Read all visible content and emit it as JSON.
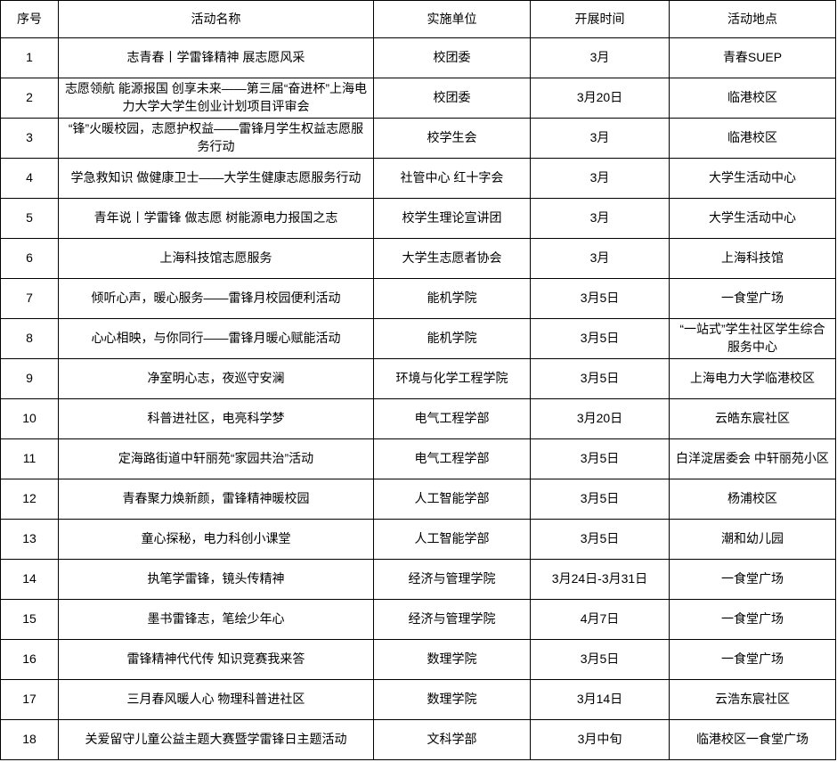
{
  "table": {
    "headers": {
      "index": "序号",
      "name": "活动名称",
      "unit": "实施单位",
      "time": "开展时间",
      "location": "活动地点"
    },
    "rows": [
      {
        "index": "1",
        "name": "志青春丨学雷锋精神 展志愿风采",
        "unit": "校团委",
        "time": "3月",
        "location": "青春SUEP"
      },
      {
        "index": "2",
        "name": "志愿领航 能源报国 创享未来——第三届“奋进杯”上海电力大学大学生创业计划项目评审会",
        "unit": "校团委",
        "time": "3月20日",
        "location": "临港校区"
      },
      {
        "index": "3",
        "name": "“锋”火暖校园，志愿护权益——雷锋月学生权益志愿服务行动",
        "unit": "校学生会",
        "time": "3月",
        "location": "临港校区"
      },
      {
        "index": "4",
        "name": "学急救知识 做健康卫士——大学生健康志愿服务行动",
        "unit": "社管中心 红十字会",
        "time": "3月",
        "location": "大学生活动中心"
      },
      {
        "index": "5",
        "name": "青年说丨学雷锋 做志愿 树能源电力报国之志",
        "unit": "校学生理论宣讲团",
        "time": "3月",
        "location": "大学生活动中心"
      },
      {
        "index": "6",
        "name": "上海科技馆志愿服务",
        "unit": "大学生志愿者协会",
        "time": "3月",
        "location": "上海科技馆"
      },
      {
        "index": "7",
        "name": "倾听心声，暖心服务——雷锋月校园便利活动",
        "unit": "能机学院",
        "time": "3月5日",
        "location": "一食堂广场"
      },
      {
        "index": "8",
        "name": "心心相映，与你同行——雷锋月暖心赋能活动",
        "unit": "能机学院",
        "time": "3月5日",
        "location": "“一站式”学生社区学生综合服务中心"
      },
      {
        "index": "9",
        "name": "净室明心志，夜巡守安澜",
        "unit": "环境与化学工程学院",
        "time": "3月5日",
        "location": "上海电力大学临港校区"
      },
      {
        "index": "10",
        "name": "科普进社区，电亮科学梦",
        "unit": "电气工程学部",
        "time": "3月20日",
        "location": "云皓东宸社区"
      },
      {
        "index": "11",
        "name": "定海路街道中轩丽苑“家园共治”活动",
        "unit": "电气工程学部",
        "time": "3月5日",
        "location": "白洋淀居委会 中轩丽苑小区"
      },
      {
        "index": "12",
        "name": "青春聚力焕新颜，雷锋精神暖校园",
        "unit": "人工智能学部",
        "time": "3月5日",
        "location": "杨浦校区"
      },
      {
        "index": "13",
        "name": "童心探秘，电力科创小课堂",
        "unit": "人工智能学部",
        "time": "3月5日",
        "location": "潮和幼儿园"
      },
      {
        "index": "14",
        "name": "执笔学雷锋，镜头传精神",
        "unit": "经济与管理学院",
        "time": "3月24日-3月31日",
        "location": "一食堂广场"
      },
      {
        "index": "15",
        "name": "墨书雷锋志，笔绘少年心",
        "unit": "经济与管理学院",
        "time": "4月7日",
        "location": "一食堂广场"
      },
      {
        "index": "16",
        "name": "雷锋精神代代传 知识竞赛我来答",
        "unit": "数理学院",
        "time": "3月5日",
        "location": "一食堂广场"
      },
      {
        "index": "17",
        "name": "三月春风暖人心 物理科普进社区",
        "unit": "数理学院",
        "time": "3月14日",
        "location": "云浩东宸社区"
      },
      {
        "index": "18",
        "name": "关爱留守儿童公益主题大赛暨学雷锋日主题活动",
        "unit": "文科学部",
        "time": "3月中旬",
        "location": "临港校区一食堂广场"
      }
    ]
  },
  "colors": {
    "border": "#000000",
    "text": "#000000",
    "background": "#ffffff"
  }
}
